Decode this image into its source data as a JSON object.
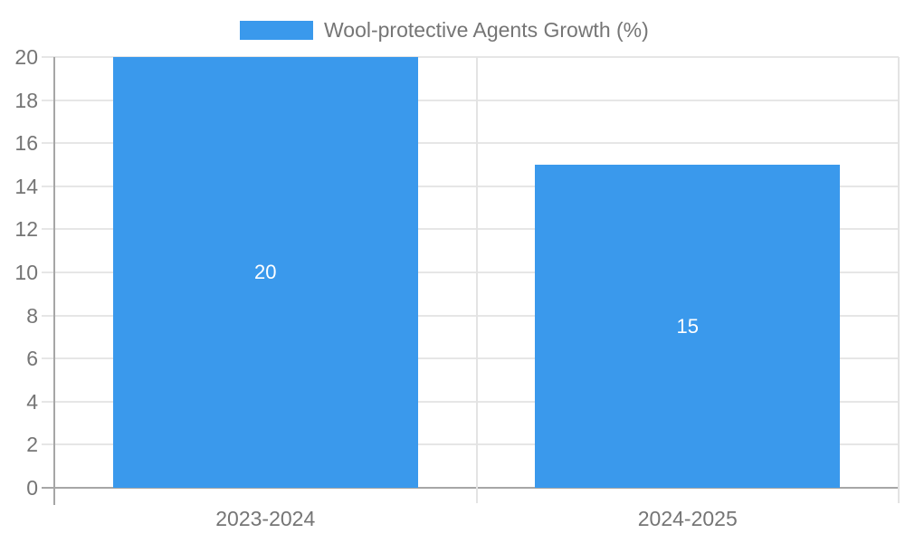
{
  "chart_data": {
    "type": "bar",
    "title": "",
    "legend_position": "top-center",
    "categories": [
      "2023-2024",
      "2024-2025"
    ],
    "series": [
      {
        "name": "Wool-protective Agents Growth (%)",
        "values": [
          20,
          15
        ]
      }
    ],
    "bar_value_labels": [
      "20",
      "15"
    ],
    "ylim": [
      0,
      20
    ],
    "ytick_step": 2,
    "ytick_labels": [
      "0",
      "2",
      "4",
      "6",
      "8",
      "10",
      "12",
      "14",
      "16",
      "18",
      "20"
    ],
    "xlabel": "",
    "ylabel": "",
    "grid": true,
    "colors": {
      "bar": "#3a99ec",
      "axis_text": "#757575",
      "grid_line": "#e6e6e6",
      "axis_line": "#a6a6a6",
      "divider_line": "#e3e3e3",
      "bar_label_text": "#ffffff",
      "background": "#ffffff"
    }
  }
}
